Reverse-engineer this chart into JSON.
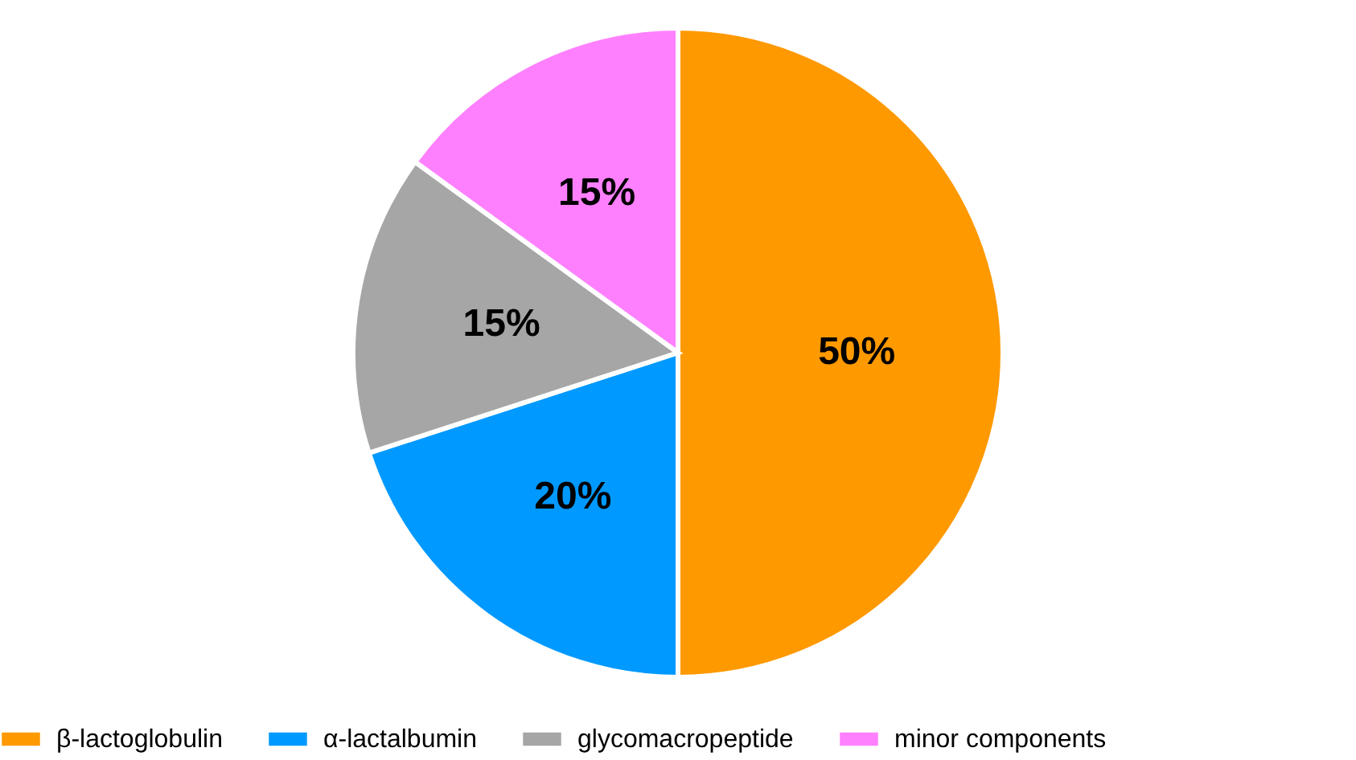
{
  "chart_data": {
    "type": "pie",
    "categories": [
      "β-lactoglobulin",
      "α-lactalbumin",
      "glycomacropeptide",
      "minor components"
    ],
    "values": [
      50,
      20,
      15,
      15
    ],
    "colors": [
      "#ff9900",
      "#0099ff",
      "#a6a6a6",
      "#ff80ff"
    ],
    "value_labels": [
      "50%",
      "20%",
      "15%",
      "15%"
    ],
    "legend": "bottom"
  }
}
